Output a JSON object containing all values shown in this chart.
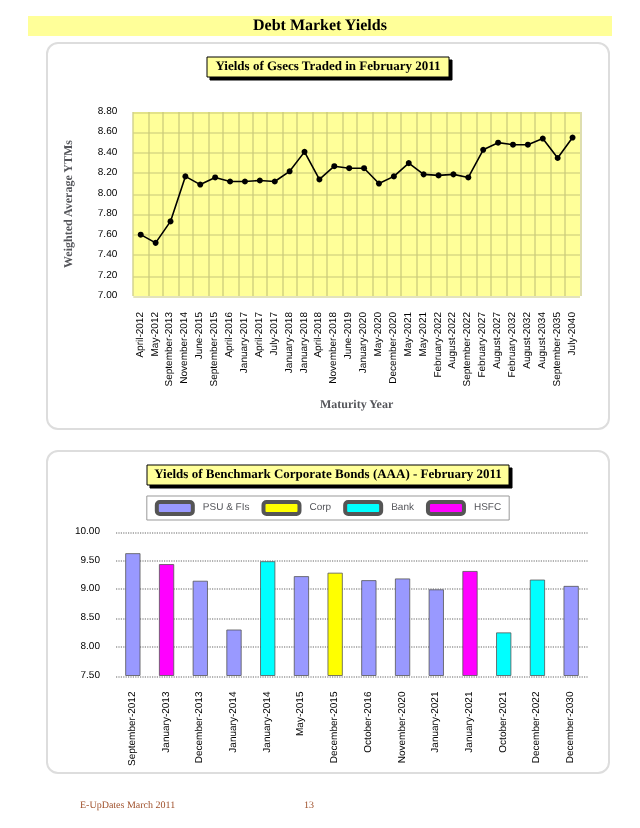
{
  "chart_data": [
    {
      "type": "line",
      "title": "Yields of Gsecs Traded in February 2011",
      "xlabel": "Maturity Year",
      "ylabel": "Weighted Average YTMs",
      "annotations": [
        "Debt Market Yields"
      ],
      "categories": [
        "April-2012",
        "May-2012",
        "September-2013",
        "November-2014",
        "June-2015",
        "September-2015",
        "April-2016",
        "January-2017",
        "April-2017",
        "July-2017",
        "January-2018",
        "January-2018",
        "April-2018",
        "November-2018",
        "June-2019",
        "January-2020",
        "May-2020",
        "December-2020",
        "May-2021",
        "May-2021",
        "February-2022",
        "August-2022",
        "September-2022",
        "February-2027",
        "August-2027",
        "February-2032",
        "August-2032",
        "August-2034",
        "September-2035",
        "July-2040"
      ],
      "values": [
        7.6,
        7.52,
        7.73,
        8.17,
        8.09,
        8.16,
        8.12,
        8.12,
        8.13,
        8.12,
        8.22,
        8.41,
        8.14,
        8.27,
        8.25,
        8.25,
        8.1,
        8.17,
        8.3,
        8.19,
        8.18,
        8.19,
        8.16,
        8.43,
        8.5,
        8.48,
        8.48,
        8.54,
        8.35,
        8.55
      ],
      "color": "#000000",
      "marker": "circle",
      "grid": true,
      "ylim": [
        7,
        8.8
      ],
      "yticks": [
        {
          "value": 7,
          "label": "7.00"
        },
        {
          "value": 7.2,
          "label": "7.20"
        },
        {
          "value": 7.4,
          "label": "7.40"
        },
        {
          "value": 7.6,
          "label": "7.60"
        },
        {
          "value": 7.8,
          "label": "7.80"
        },
        {
          "value": 8,
          "label": "8.00"
        },
        {
          "value": 8.2,
          "label": "8.20"
        },
        {
          "value": 8.4,
          "label": "8.40"
        },
        {
          "value": 8.6,
          "label": "8.60"
        },
        {
          "value": 8.8,
          "label": "8.80"
        }
      ]
    },
    {
      "type": "bar",
      "title": "Yields of Benchmark Corporate Bonds (AAA) - February 2011",
      "annotations": [
        "E-UpDates March 2011",
        "13"
      ],
      "categories": [
        "September-2012",
        "January-2013",
        "December-2013",
        "January-2014",
        "January-2014",
        "May-2015",
        "December-2015",
        "October-2016",
        "November-2020",
        "January-2021",
        "January-2021",
        "October-2021",
        "December-2022",
        "December-2030"
      ],
      "stacked": true,
      "legend": "top",
      "grid": "y",
      "ylim": [
        7.5,
        10
      ],
      "yticks": [
        {
          "value": 7.5,
          "label": "7.50"
        },
        {
          "value": 8,
          "label": "8.00"
        },
        {
          "value": 8.5,
          "label": "8.50"
        },
        {
          "value": 9,
          "label": "9.00"
        },
        {
          "value": 9.5,
          "label": "9.50"
        },
        {
          "value": 10,
          "label": "10.00"
        }
      ],
      "series": [
        {
          "name": "PSU & FIs",
          "color": "#9999ff",
          "values": [
            9.63,
            null,
            9.15,
            8.3,
            null,
            9.23,
            null,
            9.16,
            9.19,
            9.0,
            null,
            null,
            null,
            9.06
          ]
        },
        {
          "name": "Corp",
          "color": "#ffff00",
          "values": [
            null,
            null,
            null,
            null,
            null,
            null,
            9.29,
            null,
            null,
            null,
            null,
            null,
            null,
            null
          ]
        },
        {
          "name": "Bank",
          "color": "#00ffff",
          "values": [
            null,
            null,
            null,
            null,
            9.49,
            null,
            null,
            null,
            null,
            null,
            null,
            8.25,
            9.17,
            null
          ]
        },
        {
          "name": "HSFC",
          "color": "#ff00ff",
          "values": [
            null,
            9.44,
            null,
            null,
            null,
            null,
            null,
            null,
            null,
            null,
            9.32,
            null,
            null,
            null
          ]
        }
      ]
    }
  ]
}
